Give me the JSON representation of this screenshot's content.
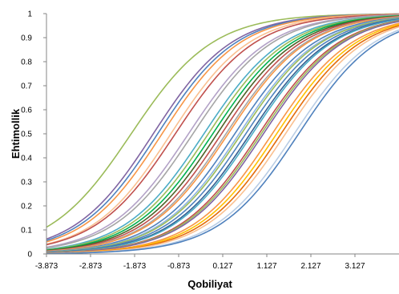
{
  "chart_data": {
    "type": "line",
    "title": "",
    "xlabel": "Qobiliyat",
    "ylabel": "Ehtimollik",
    "xlim": [
      -3.873,
      4.127
    ],
    "ylim": [
      0,
      1
    ],
    "x_ticks": [
      "-3.873",
      "-2.873",
      "-1.873",
      "-0.873",
      "0.127",
      "1.127",
      "2.127",
      "3.127"
    ],
    "y_ticks": [
      "0",
      "0.1",
      "0.2",
      "0.3",
      "0.4",
      "0.5",
      "0.6",
      "0.7",
      "0.8",
      "0.9",
      "1"
    ],
    "grid": false,
    "legend": "none",
    "curve_model": "1 / (1 + exp(-slope * (x - location)))",
    "series": [
      {
        "color": "#9BBB59",
        "location": -1.95,
        "slope": 1.08
      },
      {
        "color": "#8064A2",
        "location": -1.45,
        "slope": 1.12
      },
      {
        "color": "#4F81BD",
        "location": -1.35,
        "slope": 1.12
      },
      {
        "color": "#F79646",
        "location": -1.25,
        "slope": 1.12
      },
      {
        "color": "#FAC090",
        "location": -1.05,
        "slope": 1.12
      },
      {
        "color": "#C0504D",
        "location": -0.95,
        "slope": 1.1
      },
      {
        "color": "#B3A2C7",
        "location": -0.65,
        "slope": 1.1
      },
      {
        "color": "#A5A5A5",
        "location": -0.55,
        "slope": 1.1
      },
      {
        "color": "#4BACC6",
        "location": -0.3,
        "slope": 1.1
      },
      {
        "color": "#9BBB59",
        "location": -0.2,
        "slope": 1.1
      },
      {
        "color": "#00B050",
        "location": -0.1,
        "slope": 1.1
      },
      {
        "color": "#4F6228",
        "location": 0.0,
        "slope": 1.1
      },
      {
        "color": "#C0504D",
        "location": 0.1,
        "slope": 1.1
      },
      {
        "color": "#A6A6A6",
        "location": 0.2,
        "slope": 1.1
      },
      {
        "color": "#F79646",
        "location": 0.25,
        "slope": 1.1
      },
      {
        "color": "#4F81BD",
        "location": 0.4,
        "slope": 1.1
      },
      {
        "color": "#8DB4E2",
        "location": 0.5,
        "slope": 1.1
      },
      {
        "color": "#9BBB59",
        "location": 0.55,
        "slope": 1.1
      },
      {
        "color": "#4F81BD",
        "location": 0.65,
        "slope": 1.1
      },
      {
        "color": "#366092",
        "location": 0.75,
        "slope": 1.1
      },
      {
        "color": "#4BACC6",
        "location": 0.8,
        "slope": 1.1
      },
      {
        "color": "#C0504D",
        "location": 0.95,
        "slope": 1.1
      },
      {
        "color": "#9BBB59",
        "location": 1.0,
        "slope": 1.1
      },
      {
        "color": "#8064A2",
        "location": 1.05,
        "slope": 1.1
      },
      {
        "color": "#F79646",
        "location": 1.25,
        "slope": 1.1
      },
      {
        "color": "#FFC000",
        "location": 1.35,
        "slope": 1.1
      },
      {
        "color": "#E46C0A",
        "location": 1.45,
        "slope": 1.1
      },
      {
        "color": "#FAC090",
        "location": 1.55,
        "slope": 1.1
      },
      {
        "color": "#B9CDE5",
        "location": 1.75,
        "slope": 1.1
      },
      {
        "color": "#4F81BD",
        "location": 1.85,
        "slope": 1.1
      }
    ]
  }
}
